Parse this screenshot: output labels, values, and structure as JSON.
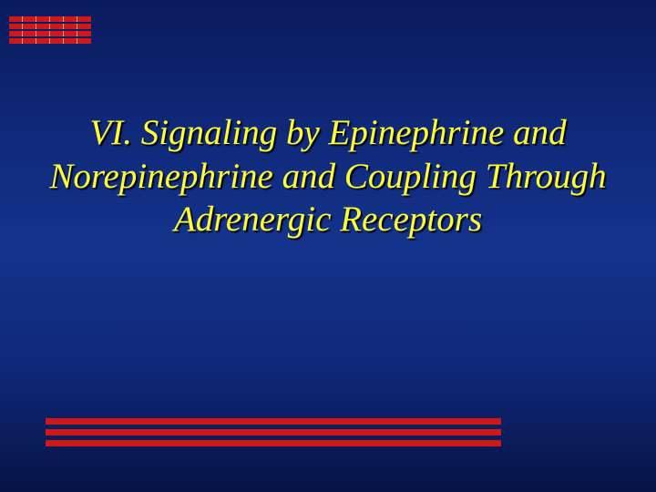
{
  "slide": {
    "title": "VI.  Signaling by Epinephrine and Norepinephrine and Coupling Through Adrenergic Receptors",
    "title_color": "#ffff33",
    "title_fontsize": 39,
    "title_fontstyle": "italic",
    "background_gradient": [
      "#0a1a5c",
      "#0f2878",
      "#14338c",
      "#0f2878",
      "#071345"
    ]
  },
  "top_decoration": {
    "stripe_count": 4,
    "cells_per_stripe": 6,
    "stripe_color": "#cc1a1a",
    "cell_border_color": "#ffffff"
  },
  "bottom_decoration": {
    "line_count": 3,
    "line_color": "#cc1a1a",
    "line_height": 7,
    "gap": 5
  }
}
